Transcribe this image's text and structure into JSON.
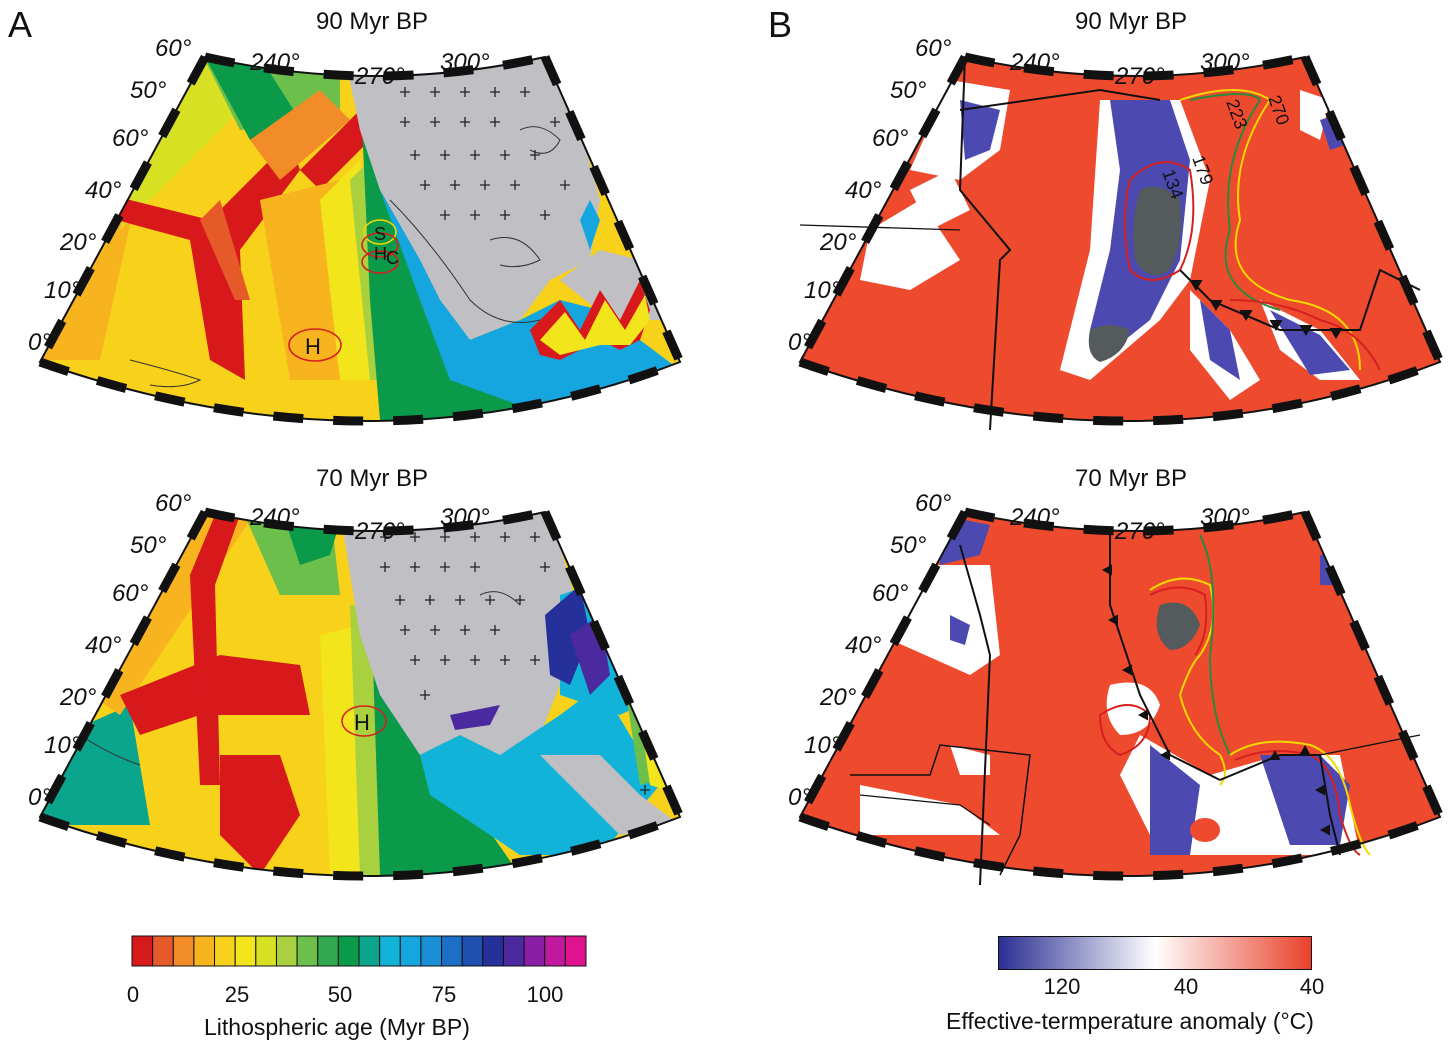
{
  "panels": {
    "A": {
      "letter": "A",
      "maps": [
        {
          "title": "90 Myr BP",
          "hotspots": [
            "H",
            "S",
            "H",
            "C"
          ]
        },
        {
          "title": "70 Myr BP",
          "hotspots": [
            "H"
          ]
        }
      ]
    },
    "B": {
      "letter": "B",
      "maps": [
        {
          "title": "90 Myr BP",
          "contour_labels": [
            "270",
            "223",
            "179",
            "134"
          ]
        },
        {
          "title": "70 Myr BP",
          "contour_labels": []
        }
      ]
    }
  },
  "graticule": {
    "longitudes": [
      "240°",
      "270°",
      "300°"
    ],
    "latitudes_left": [
      "60°",
      "50°",
      "60°",
      "40°",
      "20°",
      "10°",
      "0°"
    ]
  },
  "colorbar_age": {
    "title": "Lithospheric age (Myr BP)",
    "ticks": [
      "0",
      "25",
      "50",
      "75",
      "100"
    ],
    "colors": [
      "#d7191c",
      "#e65a2a",
      "#f28c28",
      "#f7b41e",
      "#f7d11a",
      "#f2e51b",
      "#d7e023",
      "#a9d13f",
      "#6dbf4b",
      "#2fa84f",
      "#0a9a4a",
      "#0aa58c",
      "#12b3d8",
      "#16a6df",
      "#1b8fd6",
      "#1c6fc5",
      "#1f4fb0",
      "#25309a",
      "#4b2aa0",
      "#8a1fa6",
      "#c0199f",
      "#e0138f"
    ]
  },
  "colorbar_temp": {
    "title": "Effective-termperature anomaly (°C)",
    "ticks": [
      "120",
      "40",
      "40"
    ],
    "colors": [
      "#2b2f92",
      "#ffffff",
      "#e8412b"
    ]
  },
  "colors": {
    "ocean_old_green": "#0a9a4a",
    "continent_gray": "#c0c0c4",
    "anomaly_red": "#ee4a2e",
    "anomaly_blue": "#4c4ab0",
    "dark_gray_blob": "#555a5c",
    "contour_red": "#d62020",
    "contour_yellow": "#f2d700",
    "contour_green": "#2a8a3a"
  }
}
